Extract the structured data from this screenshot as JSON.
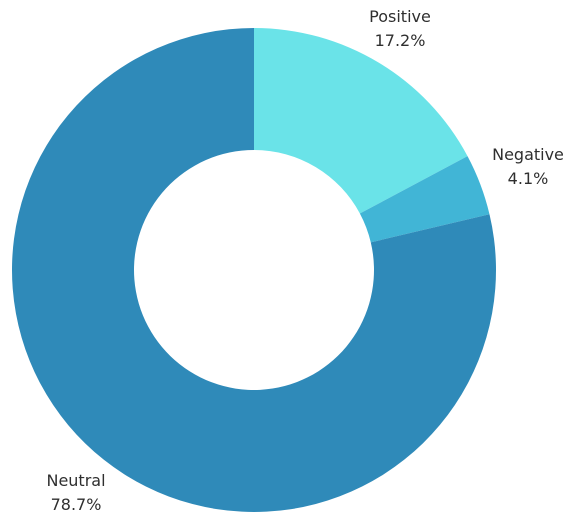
{
  "chart_data": {
    "type": "pie",
    "variant": "donut",
    "slices": [
      {
        "label": "Positive",
        "value": 17.2,
        "display": "17.2%",
        "color": "#6ae3e8"
      },
      {
        "label": "Negative",
        "value": 4.1,
        "display": "4.1%",
        "color": "#41b5d6"
      },
      {
        "label": "Neutral",
        "value": 78.7,
        "display": "78.7%",
        "color": "#2f8ab9"
      }
    ],
    "legend": "none"
  }
}
